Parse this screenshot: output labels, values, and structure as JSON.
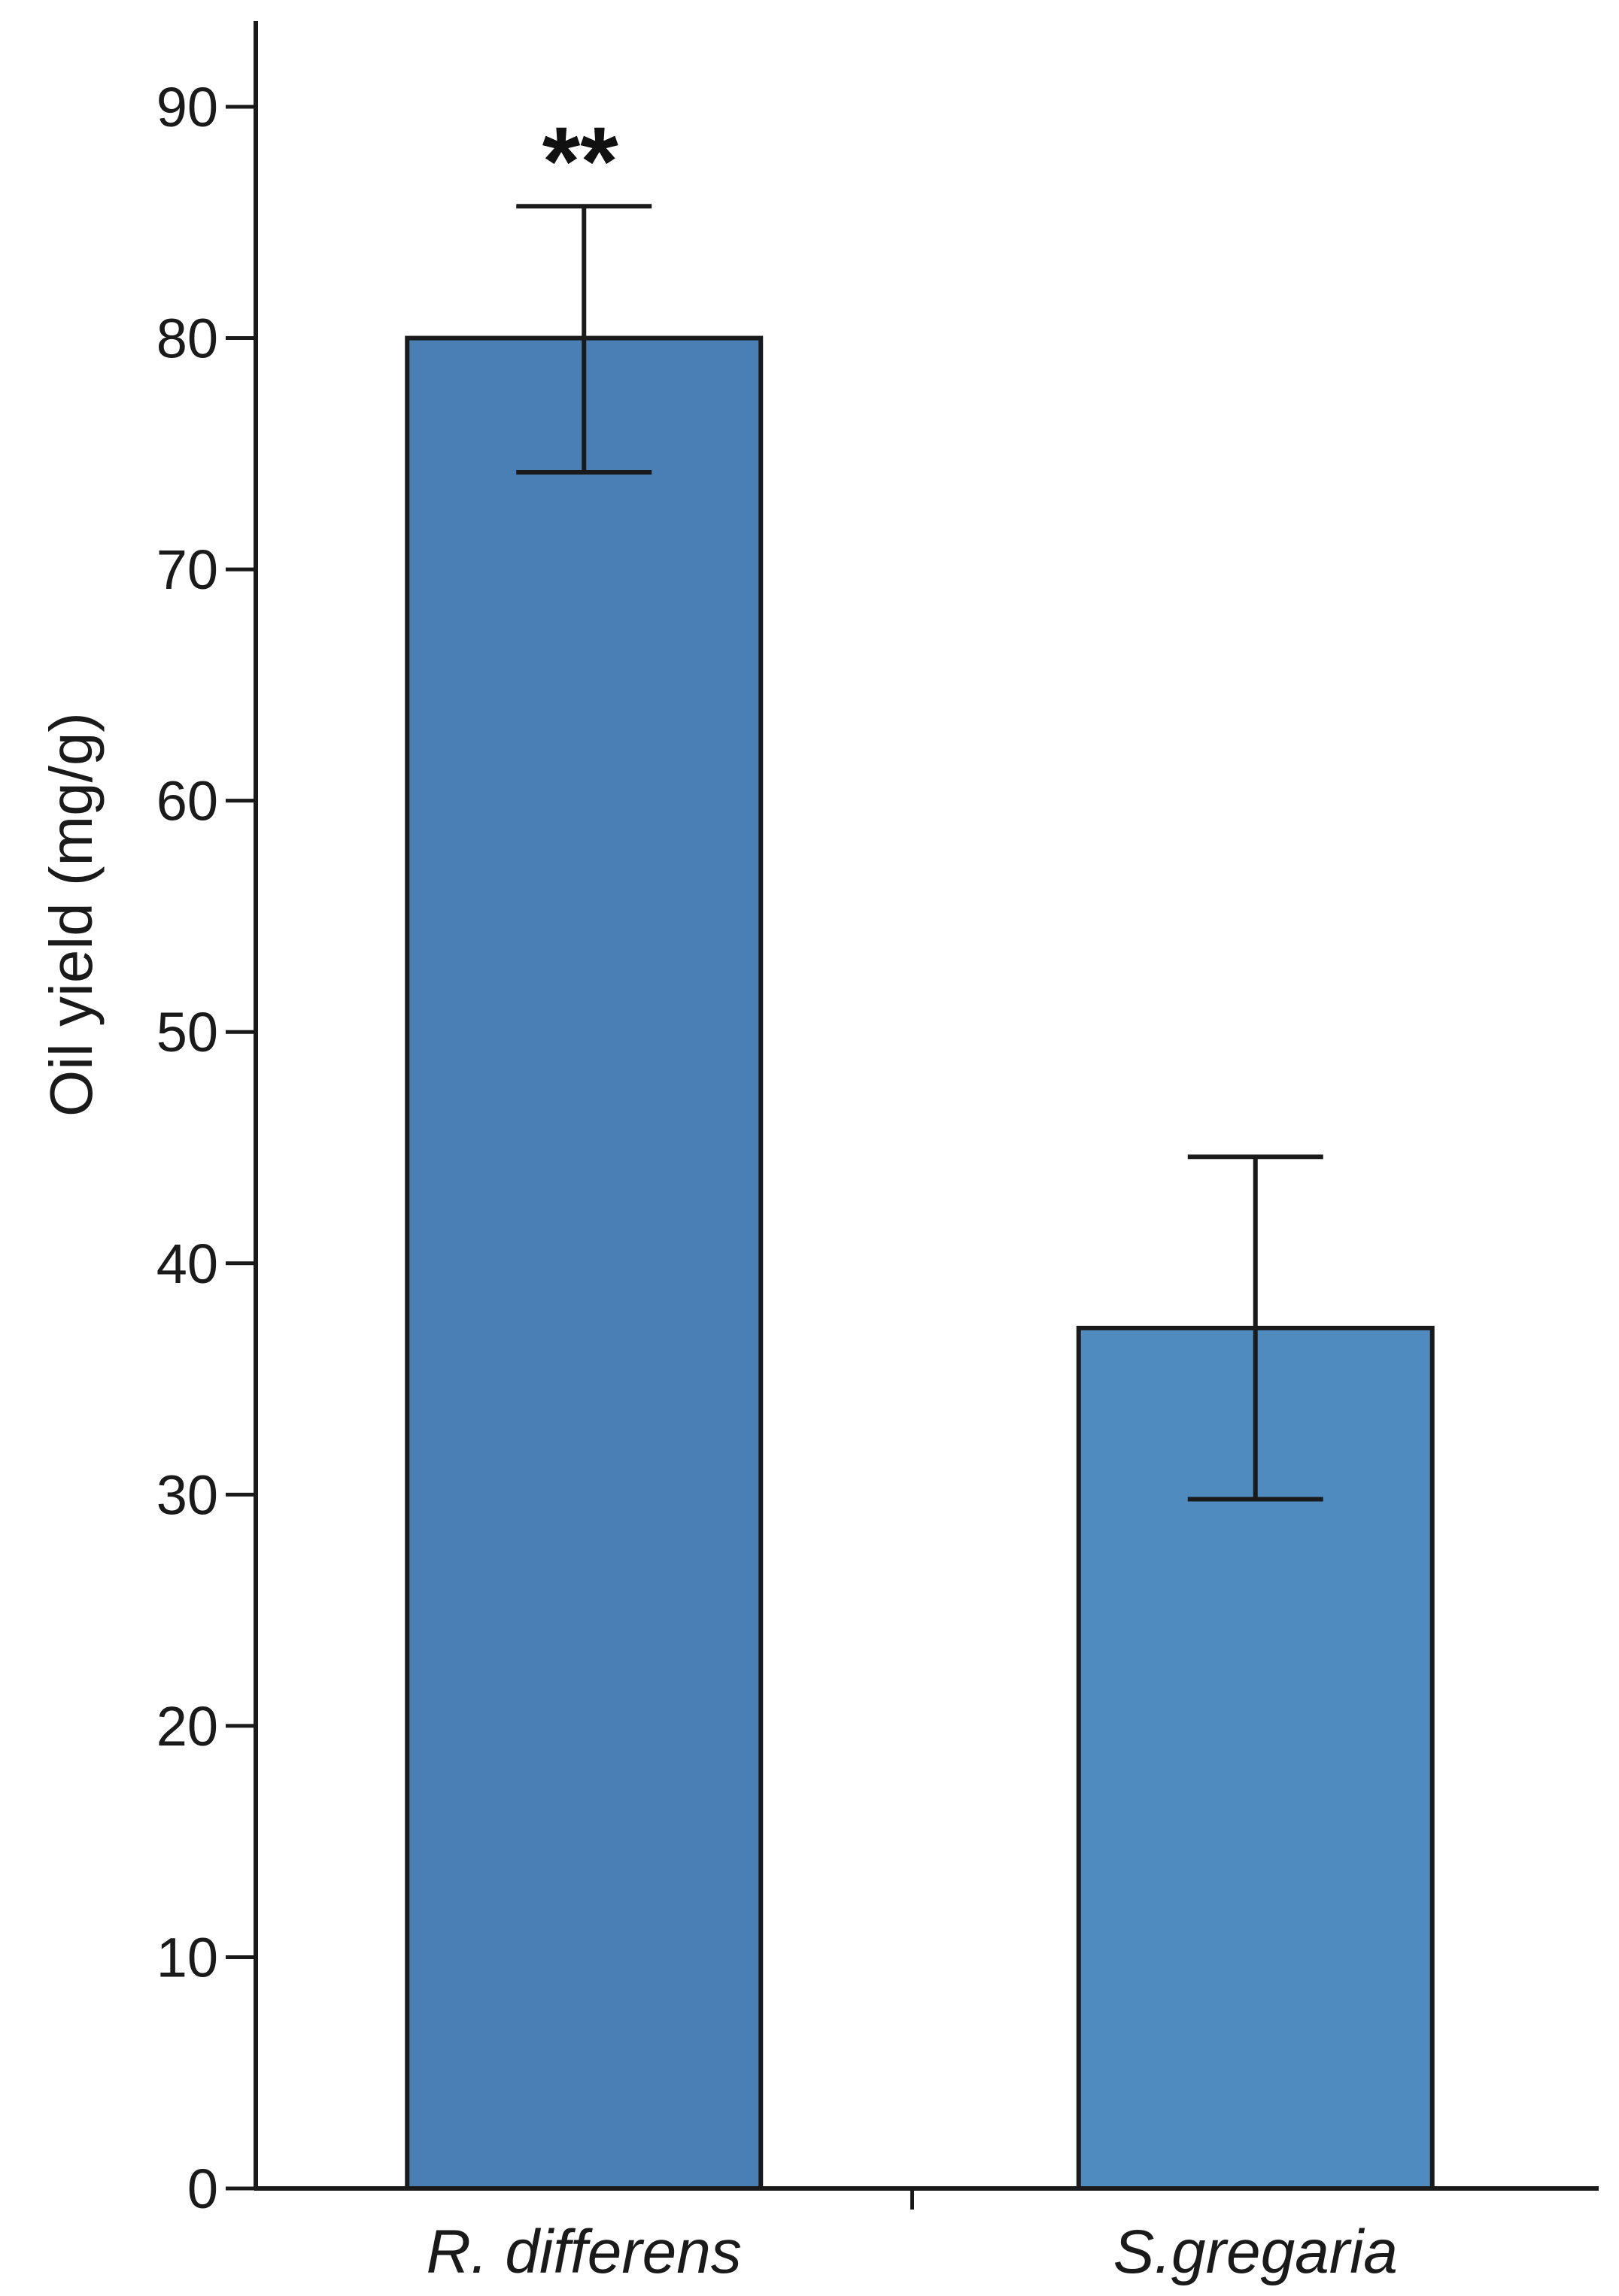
{
  "chart_data": {
    "type": "bar",
    "categories": [
      "R. differens",
      "S.gregaria"
    ],
    "values": [
      80,
      37.2
    ],
    "error_bars": [
      {
        "low": 74.2,
        "high": 85.7
      },
      {
        "low": 29.8,
        "high": 44.6
      }
    ],
    "annotations": [
      "**",
      ""
    ],
    "bar_colors": [
      "#4a7fb5",
      "#508bc0"
    ],
    "title": "",
    "xlabel": "",
    "ylabel": "Oil yield (mg/g)",
    "ylim": [
      0,
      90
    ],
    "yticks": [
      0,
      10,
      20,
      30,
      40,
      50,
      60,
      70,
      80,
      90
    ],
    "grid": false,
    "legend": "none"
  }
}
